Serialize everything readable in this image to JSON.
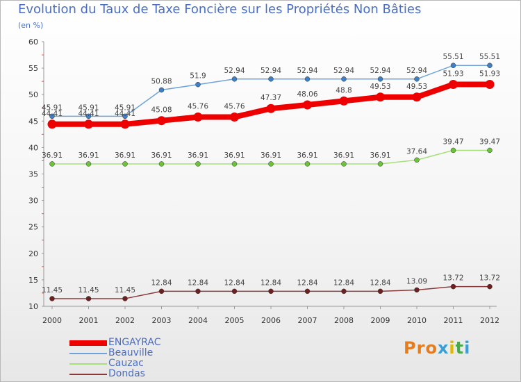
{
  "title": "Evolution du Taux de Taxe Foncière sur les Propriétés Non Bâties",
  "unit_label": "(en %)",
  "logo": {
    "letters": [
      "P",
      "r",
      "o",
      "x",
      "i",
      "t",
      "i"
    ],
    "colors": [
      "#e57c1e",
      "#e57c1e",
      "#e57c1e",
      "#3a9fd6",
      "#e0b800",
      "#4aa84a",
      "#3a9fd6"
    ]
  },
  "chart_data": {
    "type": "line",
    "categories": [
      "2000",
      "2001",
      "2002",
      "2003",
      "2004",
      "2005",
      "2006",
      "2007",
      "2008",
      "2009",
      "2010",
      "2011",
      "2012"
    ],
    "ylim": [
      10,
      60
    ],
    "yticks": [
      10,
      15,
      20,
      25,
      30,
      35,
      40,
      45,
      50,
      55,
      60
    ],
    "grid": false,
    "series": [
      {
        "name": "Beauville",
        "color": "#6fa3d8",
        "dot": "#3f7fc4",
        "emphasis": false,
        "values": [
          45.91,
          45.91,
          45.91,
          50.88,
          51.9,
          52.94,
          52.94,
          52.94,
          52.94,
          52.94,
          52.94,
          55.51,
          55.51
        ],
        "labels": [
          "45.91",
          "45.91",
          "45.91",
          "50.88",
          "51.9",
          "52.94",
          "52.94",
          "52.94",
          "52.94",
          "52.94",
          "52.94",
          "55.51",
          "55.51"
        ]
      },
      {
        "name": "Cauzac",
        "color": "#a6e07a",
        "dot": "#6cc23a",
        "emphasis": false,
        "values": [
          36.91,
          36.91,
          36.91,
          36.91,
          36.91,
          36.91,
          36.91,
          36.91,
          36.91,
          36.91,
          37.64,
          39.47,
          39.47
        ],
        "labels": [
          "36.91",
          "36.91",
          "36.91",
          "36.91",
          "36.91",
          "36.91",
          "36.91",
          "36.91",
          "36.91",
          "36.91",
          "37.64",
          "39.47",
          "39.47"
        ]
      },
      {
        "name": "Dondas",
        "color": "#8a3a3a",
        "dot": "#6e2020",
        "emphasis": false,
        "values": [
          11.45,
          11.45,
          11.45,
          12.84,
          12.84,
          12.84,
          12.84,
          12.84,
          12.84,
          12.84,
          13.09,
          13.72,
          13.72
        ],
        "labels": [
          "11.45",
          "11.45",
          "11.45",
          "12.84",
          "12.84",
          "12.84",
          "12.84",
          "12.84",
          "12.84",
          "12.84",
          "13.09",
          "13.72",
          "13.72"
        ]
      },
      {
        "name": "ENGAYRAC",
        "color": "#ee0000",
        "dot": "#ee0000",
        "emphasis": true,
        "values": [
          44.41,
          44.41,
          44.41,
          45.08,
          45.76,
          45.76,
          47.37,
          48.06,
          48.8,
          49.53,
          49.53,
          51.93,
          51.93
        ],
        "labels": [
          "44.41",
          "44.41",
          "44.41",
          "45.08",
          "45.76",
          "45.76",
          "47.37",
          "48.06",
          "48.8",
          "49.53",
          "49.53",
          "51.93",
          "51.93"
        ]
      }
    ],
    "legend": [
      "ENGAYRAC",
      "Beauville",
      "Cauzac",
      "Dondas"
    ]
  }
}
